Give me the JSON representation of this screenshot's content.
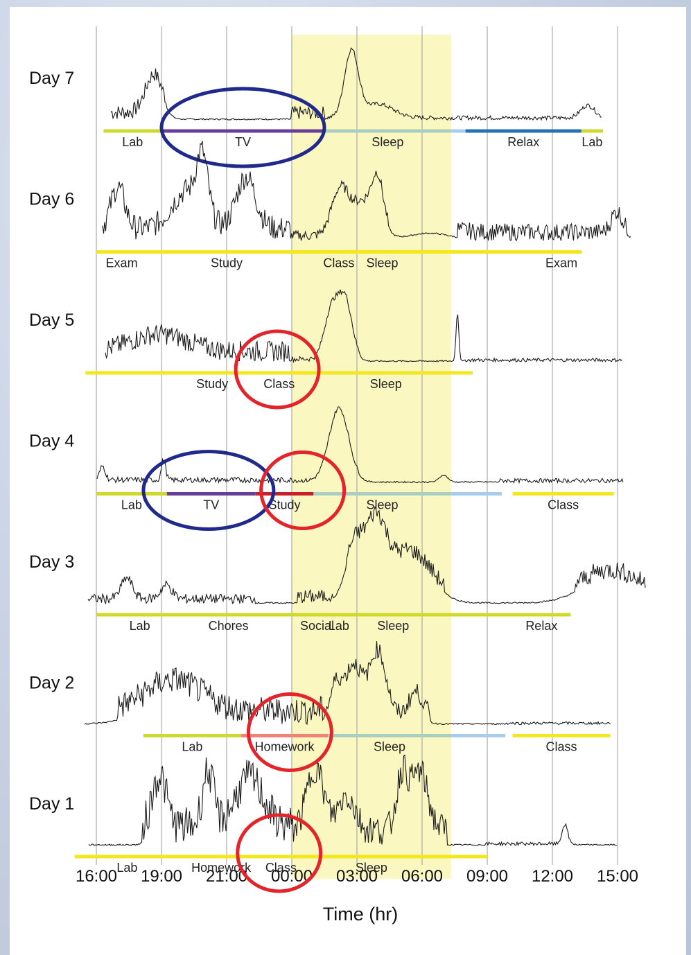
{
  "chart_data": {
    "type": "line",
    "title": "",
    "xlabel": "Time (hr)",
    "ylabel": "",
    "x_ticks": [
      "16:00",
      "19:00",
      "21:00",
      "00:00",
      "03:00",
      "06:00",
      "09:00",
      "12:00",
      "15:00"
    ],
    "shaded_region": {
      "from": "00:00",
      "to": "07:20",
      "color": "#fbf7c0"
    },
    "grid_vertical": true,
    "colors": {
      "Lab": "#cfd92b",
      "TV": "#6a3d9a",
      "Sleep": "#a9cfc2",
      "Sleep-late": "#a8cce9",
      "Relax": "#2372b6",
      "Exam": "#e8262b",
      "Study": "#c8202a",
      "Class": "#f2e81d",
      "Chores": "#d09a66",
      "Social": "#3fae49",
      "Homework": "#f08375",
      "trace": "#1a1a1a",
      "blue-ellipse": "#1f2a8c",
      "red-ellipse": "#e3242b"
    },
    "days": [
      {
        "label": "Day 7",
        "activities": [
          {
            "name": "Lab",
            "start": "16:20",
            "end": "19:00",
            "label": "Lab"
          },
          {
            "name": "TV",
            "start": "19:00",
            "end": "01:30",
            "label": "TV"
          },
          {
            "name": "Sleep",
            "start": "01:30",
            "end": "07:20",
            "label": "Sleep"
          },
          {
            "name": "Sleep-late",
            "start": "07:20",
            "end": "08:00",
            "label": ""
          },
          {
            "name": "Relax",
            "start": "08:00",
            "end": "13:20",
            "label": "Relax"
          },
          {
            "name": "Lab",
            "start": "13:20",
            "end": "14:20",
            "label": "Lab"
          }
        ],
        "highlights": [
          {
            "color": "blue",
            "from": "19:00",
            "to": "01:30"
          }
        ]
      },
      {
        "label": "Day 6",
        "activities": [
          {
            "name": "Exam",
            "start": "16:20",
            "end": "18:00",
            "label": "Exam"
          },
          {
            "name": "Study",
            "start": "18:00",
            "end": "01:00",
            "label": "Study"
          },
          {
            "name": "Sleep",
            "start": "01:00",
            "end": "07:20",
            "label": "Sleep"
          },
          {
            "name": "Sleep-late",
            "start": "07:20",
            "end": "08:30",
            "label": ""
          },
          {
            "name": "Exam",
            "start": "11:30",
            "end": "13:20",
            "label": "Exam"
          },
          {
            "name": "Class",
            "start": "13:20",
            "end": "16:00",
            "label": "Class"
          }
        ],
        "highlights": []
      },
      {
        "label": "Day 5",
        "activities": [
          {
            "name": "Study",
            "start": "16:20",
            "end": "01:20",
            "label": "Study"
          },
          {
            "name": "Sleep",
            "start": "01:20",
            "end": "07:20",
            "label": "Sleep"
          },
          {
            "name": "Sleep-late",
            "start": "07:20",
            "end": "07:40",
            "label": ""
          },
          {
            "name": "Class",
            "start": "08:20",
            "end": "15:30",
            "label": "Class"
          }
        ],
        "highlights": [
          {
            "color": "red",
            "from": "07:10",
            "to": "16:30"
          }
        ]
      },
      {
        "label": "Day 4",
        "activities": [
          {
            "name": "Lab",
            "start": "16:00",
            "end": "19:10",
            "label": "Lab"
          },
          {
            "name": "TV",
            "start": "19:10",
            "end": "22:20",
            "label": "TV"
          },
          {
            "name": "Study",
            "start": "22:20",
            "end": "01:00",
            "label": "Study"
          },
          {
            "name": "Sleep",
            "start": "01:00",
            "end": "07:20",
            "label": "Sleep"
          },
          {
            "name": "Sleep-late",
            "start": "07:20",
            "end": "09:40",
            "label": ""
          },
          {
            "name": "Class",
            "start": "10:10",
            "end": "14:50",
            "label": "Class"
          }
        ],
        "highlights": [
          {
            "color": "blue",
            "from": "18:10",
            "to": "23:10"
          },
          {
            "color": "red",
            "from": "08:40",
            "to": "17:20"
          }
        ]
      },
      {
        "label": "Day 3",
        "activities": [
          {
            "name": "Lab",
            "start": "16:00",
            "end": "19:40",
            "label": "Lab"
          },
          {
            "name": "Chores",
            "start": "19:40",
            "end": "23:10",
            "label": "Chores"
          },
          {
            "name": "Social",
            "start": "00:20",
            "end": "02:00",
            "label": "Social"
          },
          {
            "name": "Sleep",
            "start": "02:00",
            "end": "07:20",
            "label": "Sleep"
          },
          {
            "name": "Sleep-late",
            "start": "07:20",
            "end": "10:10",
            "label": ""
          },
          {
            "name": "Relax",
            "start": "10:10",
            "end": "12:50",
            "label": "Relax"
          },
          {
            "name": "Lab",
            "start": "12:50",
            "end": "16:30",
            "label": "Lab"
          }
        ],
        "highlights": []
      },
      {
        "label": "Day 2",
        "activities": [
          {
            "name": "Lab",
            "start": "18:10",
            "end": "21:40",
            "label": "Lab"
          },
          {
            "name": "Homework",
            "start": "21:40",
            "end": "01:40",
            "label": "Homework"
          },
          {
            "name": "Sleep",
            "start": "01:40",
            "end": "07:20",
            "label": "Sleep"
          },
          {
            "name": "Sleep-late",
            "start": "07:20",
            "end": "09:50",
            "label": ""
          },
          {
            "name": "Class",
            "start": "10:10",
            "end": "14:40",
            "label": "Class"
          }
        ],
        "highlights": [
          {
            "color": "red",
            "from": "07:40",
            "to": "17:10"
          }
        ]
      },
      {
        "label": "Day 1",
        "activities": [
          {
            "name": "Lab",
            "start": "16:40",
            "end": "18:10",
            "label": "Lab"
          },
          {
            "name": "Homework",
            "start": "18:10",
            "end": "00:20",
            "label": "Homework"
          },
          {
            "name": "Sleep",
            "start": "00:20",
            "end": "07:00",
            "label": "Sleep"
          },
          {
            "name": "Class",
            "start": "09:00",
            "end": "15:00",
            "label": "Class"
          }
        ],
        "highlights": [
          {
            "color": "red",
            "from": "07:10",
            "to": "16:40"
          }
        ]
      }
    ]
  }
}
